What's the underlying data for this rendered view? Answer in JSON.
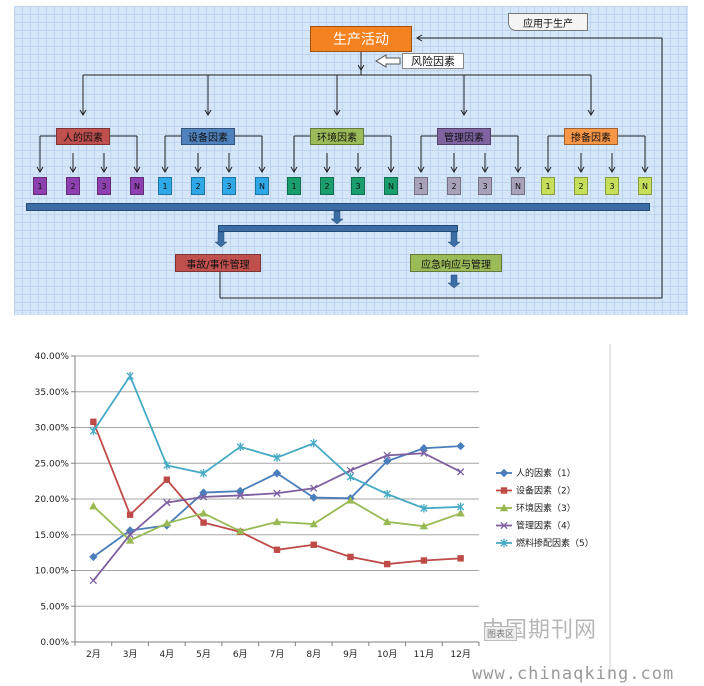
{
  "diagram": {
    "top_label": "生产活动",
    "risk_label": "风险因素",
    "feedback_label": "应用于生产",
    "factors": [
      {
        "label": "人的因素",
        "color": "#c0504d",
        "sq_color": "#8e3fb0",
        "items": [
          "1",
          "2",
          "3",
          "N"
        ]
      },
      {
        "label": "设备因素",
        "color": "#4f81bd",
        "sq_color": "#2ea8e6",
        "items": [
          "1",
          "2",
          "3",
          "N"
        ]
      },
      {
        "label": "环境因素",
        "color": "#9bbb59",
        "sq_color": "#1b9e6e",
        "items": [
          "1",
          "2",
          "3",
          "N"
        ]
      },
      {
        "label": "管理因素",
        "color": "#8064a2",
        "sq_color": "#a7a1b9",
        "items": [
          "1",
          "2",
          "3",
          "N"
        ]
      },
      {
        "label": "掺备因素",
        "color": "#f79646",
        "sq_color": "#c6df5a",
        "items": [
          "1",
          "2",
          "3",
          "N"
        ]
      }
    ],
    "accident_label": "事故/事件管理",
    "emergency_label": "应急响应与管理",
    "colors": {
      "top": "#f58220",
      "accident": "#c0504d",
      "emergency": "#9bbb59",
      "bar": "#3c6ea5"
    }
  },
  "chart_data": {
    "type": "line",
    "categories": [
      "2月",
      "3月",
      "4月",
      "5月",
      "6月",
      "7月",
      "8月",
      "9月",
      "10月",
      "11月",
      "12月"
    ],
    "ylim": [
      0,
      40
    ],
    "yticks": [
      "0.00%",
      "5.00%",
      "10.00%",
      "15.00%",
      "20.00%",
      "25.00%",
      "30.00%",
      "35.00%",
      "40.00%"
    ],
    "grid": true,
    "legend_position": "right",
    "series": [
      {
        "name": "人的因素（1）",
        "color": "#4a7ebb",
        "marker": "diamond",
        "values": [
          11.9,
          15.6,
          16.3,
          20.9,
          21.1,
          23.6,
          20.2,
          20.1,
          25.3,
          27.1,
          27.4
        ]
      },
      {
        "name": "设备因素（2）",
        "color": "#be4b48",
        "marker": "square",
        "values": [
          30.8,
          17.8,
          22.7,
          16.7,
          15.4,
          12.9,
          13.6,
          11.9,
          10.9,
          11.4,
          11.7
        ]
      },
      {
        "name": "环境因素（3）",
        "color": "#98b954",
        "marker": "triangle",
        "values": [
          19.0,
          14.2,
          16.6,
          18.0,
          15.5,
          16.8,
          16.5,
          19.8,
          16.8,
          16.2,
          18.0
        ]
      },
      {
        "name": "管理因素（4）",
        "color": "#7d5fa0",
        "marker": "x",
        "values": [
          8.6,
          15.0,
          19.5,
          20.3,
          20.5,
          20.8,
          21.5,
          24.0,
          26.1,
          26.4,
          23.8
        ]
      },
      {
        "name": "燃料掺配因素（5）",
        "color": "#46aac5",
        "marker": "star",
        "values": [
          29.5,
          37.2,
          24.7,
          23.6,
          27.3,
          25.8,
          27.8,
          23.1,
          20.7,
          18.7,
          18.9
        ]
      }
    ]
  },
  "watermark": {
    "cn": "中国期刊网",
    "url": "www.chinaqking.com",
    "badge": "图表区"
  }
}
